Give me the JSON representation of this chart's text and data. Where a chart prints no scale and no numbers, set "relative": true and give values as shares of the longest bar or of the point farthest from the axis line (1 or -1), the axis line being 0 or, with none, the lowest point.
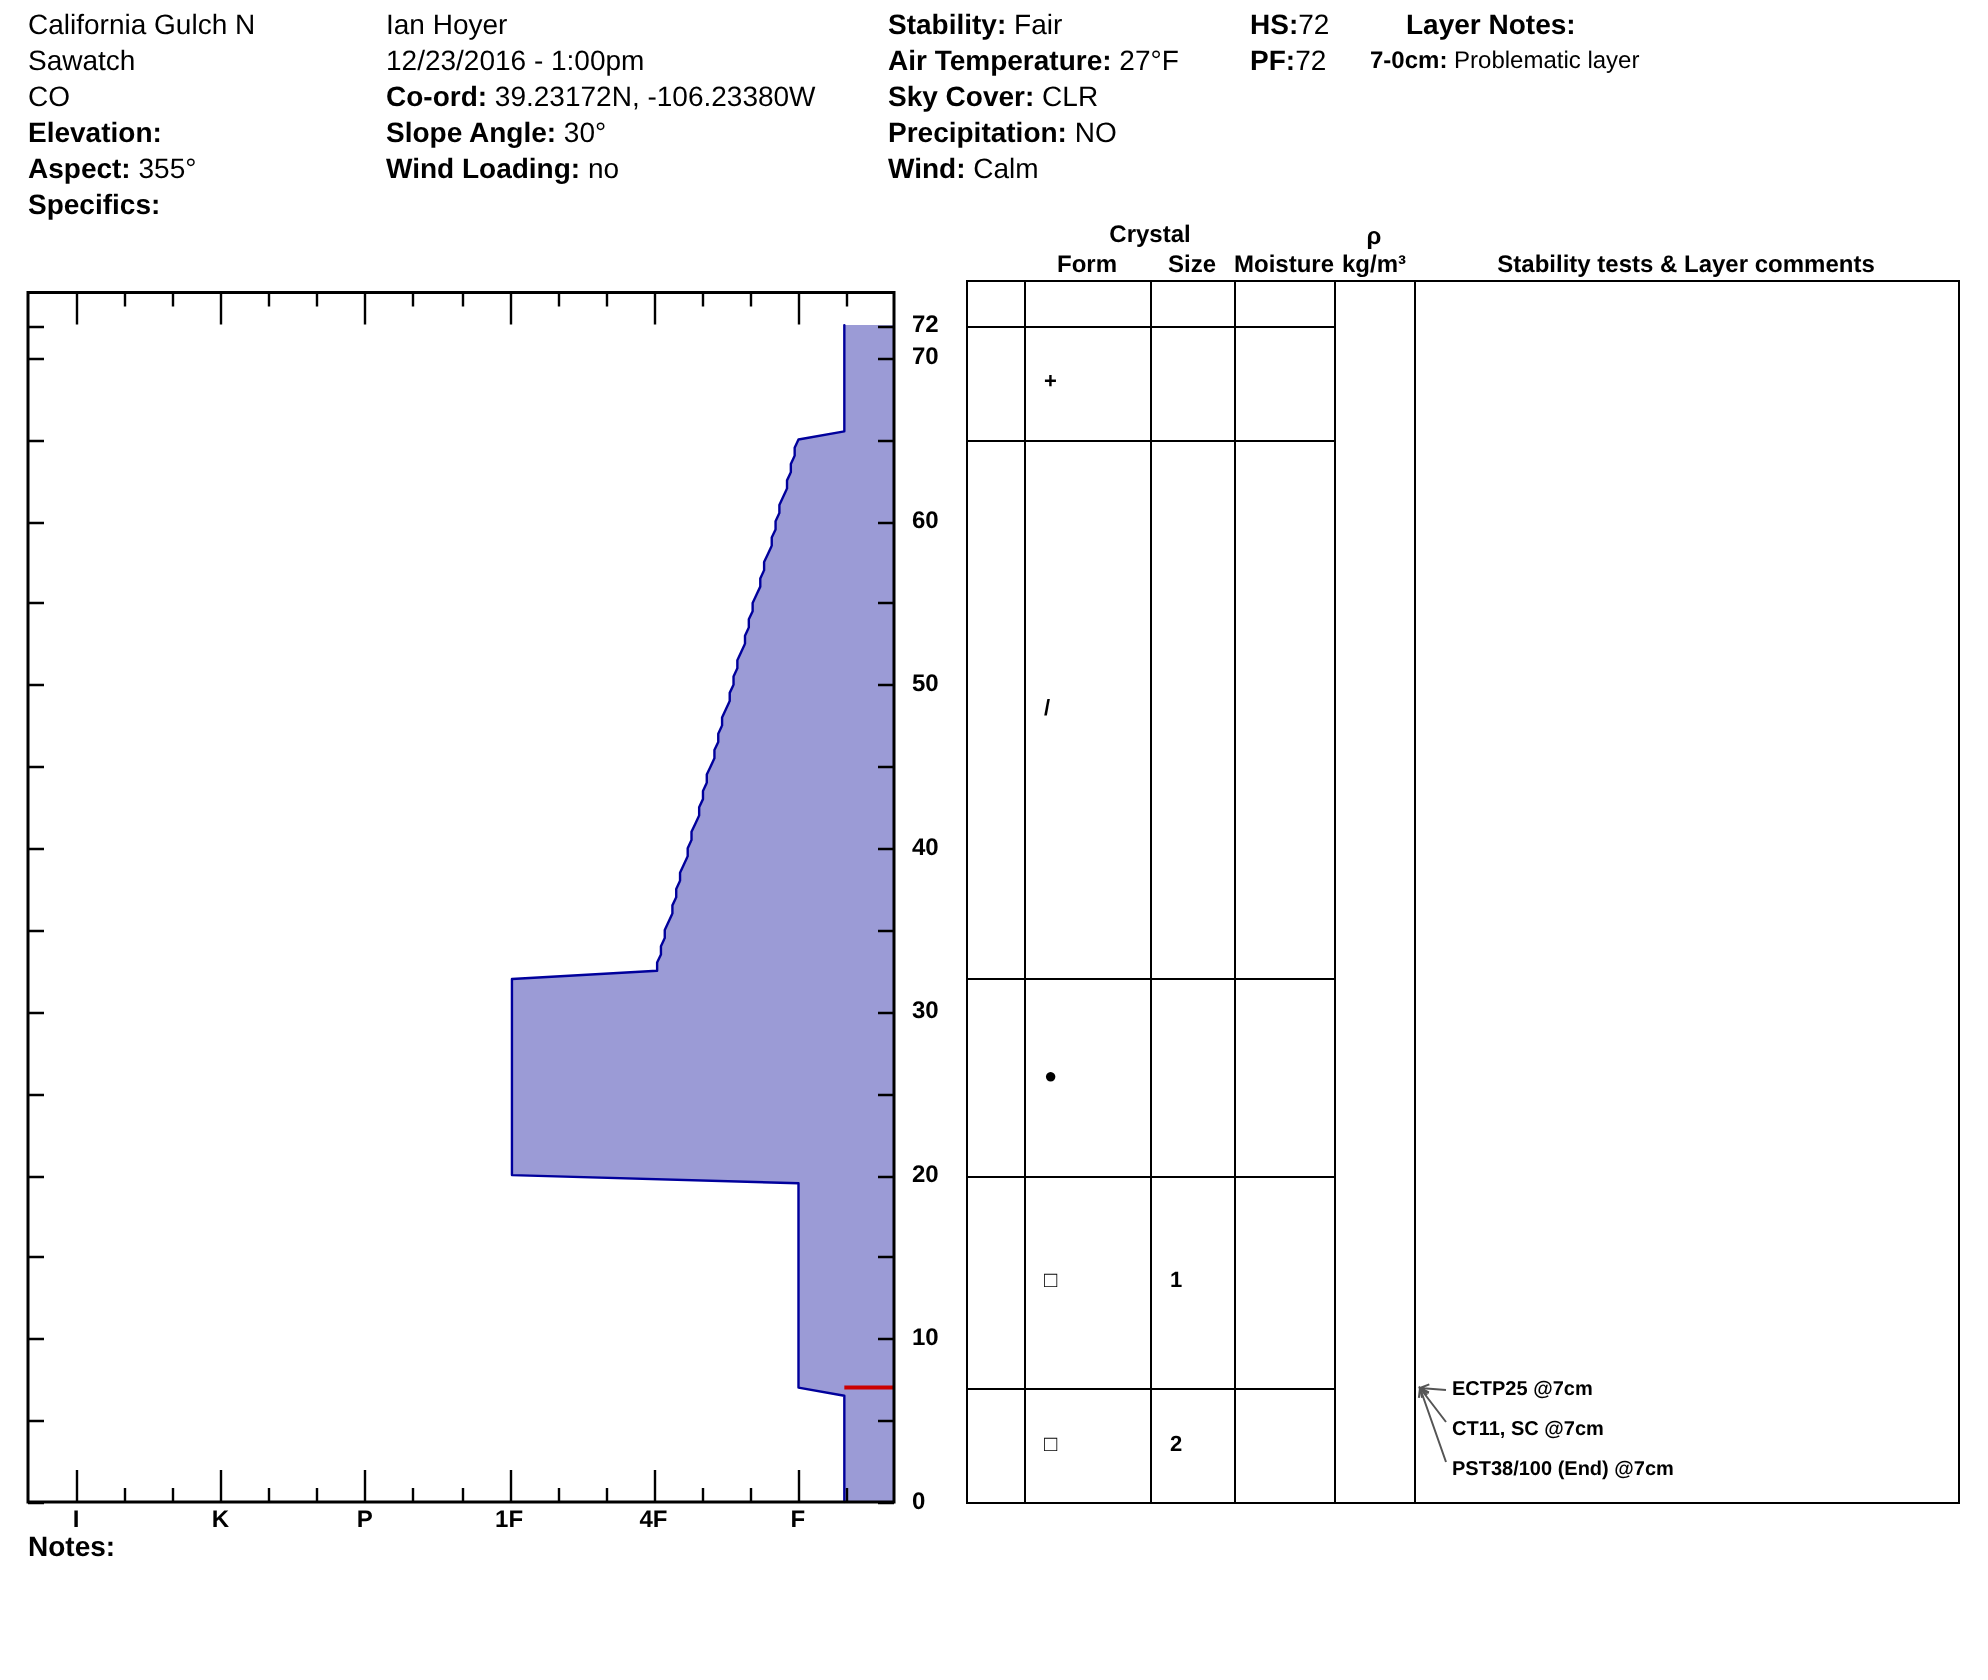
{
  "chart_data": [
    {
      "type": "other",
      "annotations": [
        "California Gulch N",
        "Sawatch",
        "CO",
        "Elevation:",
        "Aspect: 355°",
        "Specifics:",
        "Ian Hoyer",
        "12/23/2016 - 1:00pm",
        "Co-ord: 39.23172N, -106.23380W",
        "Slope Angle: 30°",
        "Wind Loading: no",
        "Stability: Fair",
        "Air Temperature: 27°F",
        "Sky Cover: CLR",
        "Precipitation: NO",
        "Wind: Calm",
        "HS:72",
        "PF:72",
        "Layer Notes:",
        "7-0cm: Problematic layer",
        "Notes:"
      ]
    },
    {
      "type": "area",
      "orientation": "horizontal",
      "relative": true,
      "categories": [
        null,
        null,
        null,
        null,
        "72",
        null,
        null,
        null,
        "70",
        null,
        null,
        null,
        null,
        null,
        null,
        null,
        null,
        null,
        null,
        null,
        null,
        null,
        null,
        null,
        null,
        null,
        null,
        null,
        "60",
        null,
        null,
        null,
        null,
        null,
        null,
        null,
        null,
        null,
        null,
        null,
        null,
        null,
        null,
        null,
        null,
        null,
        null,
        null,
        "50",
        null,
        null,
        null,
        null,
        null,
        null,
        null,
        null,
        null,
        null,
        null,
        null,
        null,
        null,
        null,
        null,
        null,
        null,
        null,
        "40",
        null,
        null,
        null,
        null,
        null,
        null,
        null,
        null,
        null,
        null,
        null,
        null,
        null,
        null,
        null,
        null,
        null,
        null,
        null,
        "30",
        null,
        null,
        null,
        null,
        null,
        null,
        null,
        null,
        null,
        null,
        null,
        null,
        null,
        null,
        null,
        null,
        null,
        null,
        null,
        "20",
        null,
        null,
        null,
        null,
        null,
        null,
        null,
        null,
        null,
        null,
        null,
        null,
        null,
        null,
        null,
        null,
        null,
        null,
        null,
        "10",
        null,
        null,
        null,
        null,
        null,
        null,
        null,
        null,
        null,
        null,
        null,
        null,
        null,
        null,
        null,
        null,
        null,
        null,
        null,
        "0"
      ],
      "series": [
        {
          "type": "area",
          "color": "#9b9bd6",
          "values": [
            null,
            null,
            null,
            null,
            0.13,
            0.13,
            0.13,
            0.13,
            0.13,
            0.13,
            0.13,
            0.13,
            0.13,
            0.13,
            0.13,
            0.13,
            0.13,
            0.13,
            0.25,
            0.26,
            0.26,
            0.27,
            0.27,
            0.28,
            0.28,
            0.29,
            0.3,
            0.3,
            0.31,
            0.31,
            0.32,
            0.32,
            0.33,
            0.34,
            0.34,
            0.35,
            0.35,
            0.36,
            0.37,
            0.37,
            0.38,
            0.38,
            0.39,
            0.39,
            0.4,
            0.41,
            0.41,
            0.42,
            0.42,
            0.43,
            0.43,
            0.44,
            0.45,
            0.45,
            0.46,
            0.46,
            0.47,
            0.47,
            0.48,
            0.49,
            0.49,
            0.5,
            0.5,
            0.51,
            0.51,
            0.52,
            0.53,
            0.53,
            0.54,
            0.54,
            0.55,
            0.56,
            0.56,
            0.57,
            0.57,
            0.58,
            0.58,
            0.59,
            0.6,
            0.6,
            0.61,
            0.61,
            0.62,
            0.62,
            1,
            1,
            1,
            1,
            1,
            1,
            1,
            1,
            1,
            1,
            1,
            1,
            1,
            1,
            1,
            1,
            1,
            1,
            1,
            1,
            1,
            1,
            1,
            1,
            1,
            0.25,
            0.25,
            0.25,
            0.25,
            0.25,
            0.25,
            0.25,
            0.25,
            0.25,
            0.25,
            0.25,
            0.25,
            0.25,
            0.25,
            0.25,
            0.25,
            0.25,
            0.25,
            0.25,
            0.25,
            0.25,
            0.25,
            0.25,
            0.25,
            0.25,
            0.25,
            0.13,
            0.13,
            0.13,
            0.13,
            0.13,
            0.13,
            0.13,
            0.13,
            0.13,
            0.13,
            0.13,
            0.13,
            0.13,
            0.13
          ]
        },
        {
          "type": "bar",
          "color": "#cc0000",
          "values": [
            null,
            null,
            null,
            null,
            null,
            null,
            null,
            null,
            null,
            null,
            null,
            null,
            null,
            null,
            null,
            null,
            null,
            null,
            null,
            null,
            null,
            null,
            null,
            null,
            null,
            null,
            null,
            null,
            null,
            null,
            null,
            null,
            null,
            null,
            null,
            null,
            null,
            null,
            null,
            null,
            null,
            null,
            null,
            null,
            null,
            null,
            null,
            null,
            null,
            null,
            null,
            null,
            null,
            null,
            null,
            null,
            null,
            null,
            null,
            null,
            null,
            null,
            null,
            null,
            null,
            null,
            null,
            null,
            null,
            null,
            null,
            null,
            null,
            null,
            null,
            null,
            null,
            null,
            null,
            null,
            null,
            null,
            null,
            null,
            null,
            null,
            null,
            null,
            null,
            null,
            null,
            null,
            null,
            null,
            null,
            null,
            null,
            null,
            null,
            null,
            null,
            null,
            null,
            null,
            null,
            null,
            null,
            null,
            null,
            null,
            null,
            null,
            null,
            null,
            null,
            null,
            null,
            null,
            null,
            null,
            null,
            null,
            null,
            null,
            null,
            null,
            null,
            null,
            null,
            null,
            null,
            null,
            null,
            null,
            0.13,
            null,
            null,
            null,
            null,
            null,
            null,
            null,
            null,
            null,
            null,
            null,
            null,
            null,
            null
          ]
        }
      ],
      "annotations": [
        "I",
        "K",
        "P",
        "1F",
        "4F",
        "F"
      ]
    },
    {
      "type": "other",
      "annotations": [
        "Crystal",
        "Form",
        "Size",
        "Moisture",
        "ρ kg/m³",
        "Stability tests & Layer comments",
        "+",
        "/",
        "●",
        "□",
        "1",
        "□",
        "2",
        "ECTP25 @7cm",
        "CT11, SC @7cm",
        "PST38/100 (End) @7cm"
      ]
    }
  ]
}
